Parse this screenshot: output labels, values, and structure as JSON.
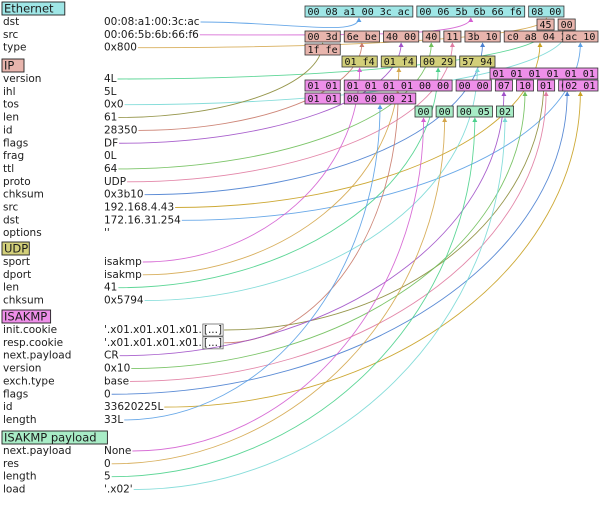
{
  "colors": {
    "ethernet": "#9fe6e6",
    "ip": "#e8b5ad",
    "udp": "#d2cf7a",
    "isakmp": "#ee8fe9",
    "isakmp_payload": "#a8ecc6",
    "wire_palette": [
      "#5aa0e6",
      "#d45fd1",
      "#d4a64b",
      "#4cd18c",
      "#7ad9d6",
      "#8c8c3a",
      "#c97a6a",
      "#a050c8",
      "#6fbf5a",
      "#e07aa0",
      "#4a7fd0",
      "#c8a020"
    ]
  },
  "layers": [
    {
      "id": "ethernet",
      "name": "Ethernet",
      "color": "#9fe6e6",
      "fields": [
        {
          "name": "dst",
          "value": "00:08:a1:00:3c:ac"
        },
        {
          "name": "src",
          "value": "00:06:5b:6b:66:f6"
        },
        {
          "name": "type",
          "value": "0x800"
        }
      ]
    },
    {
      "id": "ip",
      "name": "IP",
      "color": "#e8b5ad",
      "fields": [
        {
          "name": "version",
          "value": "4L"
        },
        {
          "name": "ihl",
          "value": "5L"
        },
        {
          "name": "tos",
          "value": "0x0"
        },
        {
          "name": "len",
          "value": "61"
        },
        {
          "name": "id",
          "value": "28350"
        },
        {
          "name": "flags",
          "value": "DF"
        },
        {
          "name": "frag",
          "value": "0L"
        },
        {
          "name": "ttl",
          "value": "64"
        },
        {
          "name": "proto",
          "value": "UDP"
        },
        {
          "name": "chksum",
          "value": "0x3b10"
        },
        {
          "name": "src",
          "value": "192.168.4.43"
        },
        {
          "name": "dst",
          "value": "172.16.31.254"
        },
        {
          "name": "options",
          "value": "''"
        }
      ]
    },
    {
      "id": "udp",
      "name": "UDP",
      "color": "#d2cf7a",
      "fields": [
        {
          "name": "sport",
          "value": "isakmp"
        },
        {
          "name": "dport",
          "value": "isakmp"
        },
        {
          "name": "len",
          "value": "41"
        },
        {
          "name": "chksum",
          "value": "0x5794"
        }
      ]
    },
    {
      "id": "isakmp",
      "name": "ISAKMP",
      "color": "#ee8fe9",
      "fields": [
        {
          "name": "init.cookie",
          "value": "'.x01.x01.x01.x01.",
          "trunc": "[...]"
        },
        {
          "name": "resp.cookie",
          "value": "'.x01.x01.x01.x01.",
          "trunc": "[...]"
        },
        {
          "name": "next.payload",
          "value": "CR"
        },
        {
          "name": "version",
          "value": "0x10"
        },
        {
          "name": "exch.type",
          "value": "base"
        },
        {
          "name": "flags",
          "value": "0"
        },
        {
          "name": "id",
          "value": "33620225L"
        },
        {
          "name": "length",
          "value": "33L"
        }
      ]
    },
    {
      "id": "isakmp_payload",
      "name": "ISAKMP payload",
      "color": "#a8ecc6",
      "fields": [
        {
          "name": "next.payload",
          "value": "None"
        },
        {
          "name": "res",
          "value": "0"
        },
        {
          "name": "length",
          "value": "5"
        },
        {
          "name": "load",
          "value": "'.x02'"
        }
      ]
    }
  ],
  "hex_rows": [
    [
      {
        "t": "00 08 a1 00 3c ac",
        "layer": "ethernet",
        "f": "dst"
      },
      {
        "t": "00 06 5b 6b 66 f6",
        "layer": "ethernet",
        "f": "src"
      },
      {
        "t": "08 00",
        "layer": "ethernet",
        "f": "type"
      }
    ],
    [
      {
        "t": "45",
        "layer": "ip",
        "f": "version"
      },
      {
        "t": "00",
        "layer": "ip",
        "f": "tos"
      }
    ],
    [
      {
        "t": "00 3d",
        "layer": "ip",
        "f": "len"
      },
      {
        "t": "6e be",
        "layer": "ip",
        "f": "id"
      },
      {
        "t": "40 00",
        "layer": "ip",
        "f": "flags"
      },
      {
        "t": "40",
        "layer": "ip",
        "f": "ttl"
      },
      {
        "t": "11",
        "layer": "ip",
        "f": "proto"
      },
      {
        "t": "3b 10",
        "layer": "ip",
        "f": "chksum"
      },
      {
        "t": "c0 a8 04 2b",
        "layer": "ip",
        "f": "src"
      },
      {
        "t": "ac 10",
        "layer": "ip",
        "f": "dst"
      }
    ],
    [
      {
        "t": "1f fe",
        "layer": "ip",
        "f": "dst"
      }
    ],
    [
      {
        "t": "01 f4",
        "layer": "udp",
        "f": "sport"
      },
      {
        "t": "01 f4",
        "layer": "udp",
        "f": "dport"
      },
      {
        "t": "00 29",
        "layer": "udp",
        "f": "len"
      },
      {
        "t": "57 94",
        "layer": "udp",
        "f": "chksum"
      }
    ],
    [
      {
        "t": "01 01 01 01 01 01",
        "layer": "isakmp",
        "f": "init.cookie"
      }
    ],
    [
      {
        "t": "01 01",
        "layer": "isakmp",
        "f": "init.cookie"
      },
      {
        "t": "01 01 01 01 00 00",
        "layer": "isakmp",
        "f": "resp.cookie"
      },
      {
        "t": "00 00",
        "layer": "isakmp",
        "f": "resp.cookie"
      },
      {
        "t": "07",
        "layer": "isakmp",
        "f": "next.payload"
      },
      {
        "t": "10",
        "layer": "isakmp",
        "f": "version"
      },
      {
        "t": "01",
        "layer": "isakmp",
        "f": "exch.type"
      },
      {
        "t": "00",
        "layer": "isakmp",
        "f": "flags"
      },
      {
        "t": "02 01",
        "layer": "isakmp",
        "f": "id"
      }
    ],
    [
      {
        "t": "01 01",
        "layer": "isakmp",
        "f": "id"
      },
      {
        "t": "00 00 00 21",
        "layer": "isakmp",
        "f": "length"
      }
    ],
    [
      {
        "t": "00",
        "layer": "isakmp_payload",
        "f": "next.payload"
      },
      {
        "t": "00",
        "layer": "isakmp_payload",
        "f": "res"
      },
      {
        "t": "00 05",
        "layer": "isakmp_payload",
        "f": "length"
      },
      {
        "t": "02",
        "layer": "isakmp_payload",
        "f": "load"
      }
    ]
  ]
}
